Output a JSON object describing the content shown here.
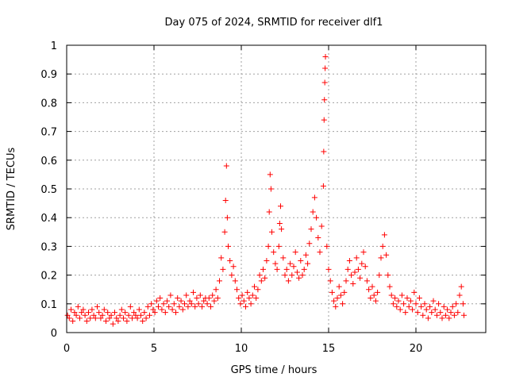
{
  "chart_data": {
    "type": "scatter",
    "title": "Day 075 of 2024, SRMTID for receiver dlf1",
    "xlabel": "GPS time / hours",
    "ylabel": "SRMTID / TECUs",
    "xlim": [
      0,
      24
    ],
    "ylim": [
      0,
      1
    ],
    "x_ticks": [
      0,
      5,
      10,
      15,
      20
    ],
    "y_ticks": [
      0,
      0.1,
      0.2,
      0.3,
      0.4,
      0.5,
      0.6,
      0.7,
      0.8,
      0.9,
      1
    ],
    "x_tick_labels": [
      "0",
      "5",
      "10",
      "15",
      "20"
    ],
    "y_tick_labels": [
      "0",
      "0.1",
      "0.2",
      "0.3",
      "0.4",
      "0.5",
      "0.6",
      "0.7",
      "0.8",
      "0.9",
      "1"
    ],
    "grid": true,
    "marker": "+",
    "color": "#ff0000",
    "series": [
      {
        "name": "SRMTID",
        "points": [
          [
            0.05,
            0.06
          ],
          [
            0.15,
            0.05
          ],
          [
            0.25,
            0.08
          ],
          [
            0.35,
            0.04
          ],
          [
            0.45,
            0.07
          ],
          [
            0.55,
            0.06
          ],
          [
            0.65,
            0.09
          ],
          [
            0.75,
            0.05
          ],
          [
            0.85,
            0.07
          ],
          [
            0.95,
            0.08
          ],
          [
            1.05,
            0.06
          ],
          [
            1.15,
            0.04
          ],
          [
            1.25,
            0.07
          ],
          [
            1.35,
            0.05
          ],
          [
            1.45,
            0.08
          ],
          [
            1.55,
            0.06
          ],
          [
            1.65,
            0.05
          ],
          [
            1.75,
            0.09
          ],
          [
            1.85,
            0.07
          ],
          [
            1.95,
            0.05
          ],
          [
            2.05,
            0.06
          ],
          [
            2.15,
            0.08
          ],
          [
            2.25,
            0.04
          ],
          [
            2.35,
            0.07
          ],
          [
            2.45,
            0.05
          ],
          [
            2.55,
            0.06
          ],
          [
            2.65,
            0.03
          ],
          [
            2.75,
            0.07
          ],
          [
            2.85,
            0.05
          ],
          [
            2.95,
            0.04
          ],
          [
            3.05,
            0.06
          ],
          [
            3.15,
            0.08
          ],
          [
            3.25,
            0.05
          ],
          [
            3.35,
            0.07
          ],
          [
            3.45,
            0.04
          ],
          [
            3.55,
            0.06
          ],
          [
            3.65,
            0.09
          ],
          [
            3.75,
            0.05
          ],
          [
            3.85,
            0.07
          ],
          [
            3.95,
            0.06
          ],
          [
            4.05,
            0.05
          ],
          [
            4.15,
            0.08
          ],
          [
            4.25,
            0.06
          ],
          [
            4.35,
            0.04
          ],
          [
            4.45,
            0.07
          ],
          [
            4.55,
            0.05
          ],
          [
            4.65,
            0.09
          ],
          [
            4.75,
            0.06
          ],
          [
            4.85,
            0.1
          ],
          [
            4.95,
            0.08
          ],
          [
            5.05,
            0.07
          ],
          [
            5.15,
            0.11
          ],
          [
            5.25,
            0.09
          ],
          [
            5.35,
            0.12
          ],
          [
            5.45,
            0.08
          ],
          [
            5.55,
            0.1
          ],
          [
            5.65,
            0.07
          ],
          [
            5.75,
            0.11
          ],
          [
            5.85,
            0.09
          ],
          [
            5.95,
            0.13
          ],
          [
            6.05,
            0.08
          ],
          [
            6.15,
            0.1
          ],
          [
            6.25,
            0.07
          ],
          [
            6.35,
            0.12
          ],
          [
            6.45,
            0.09
          ],
          [
            6.55,
            0.11
          ],
          [
            6.65,
            0.08
          ],
          [
            6.75,
            0.1
          ],
          [
            6.85,
            0.13
          ],
          [
            6.95,
            0.09
          ],
          [
            7.05,
            0.11
          ],
          [
            7.15,
            0.1
          ],
          [
            7.25,
            0.14
          ],
          [
            7.35,
            0.09
          ],
          [
            7.45,
            0.12
          ],
          [
            7.55,
            0.1
          ],
          [
            7.65,
            0.13
          ],
          [
            7.75,
            0.09
          ],
          [
            7.85,
            0.11
          ],
          [
            7.95,
            0.12
          ],
          [
            8.05,
            0.1
          ],
          [
            8.15,
            0.12
          ],
          [
            8.25,
            0.09
          ],
          [
            8.35,
            0.13
          ],
          [
            8.45,
            0.11
          ],
          [
            8.55,
            0.15
          ],
          [
            8.65,
            0.12
          ],
          [
            8.75,
            0.18
          ],
          [
            8.85,
            0.26
          ],
          [
            8.95,
            0.22
          ],
          [
            9.05,
            0.35
          ],
          [
            9.1,
            0.46
          ],
          [
            9.15,
            0.58
          ],
          [
            9.2,
            0.4
          ],
          [
            9.25,
            0.3
          ],
          [
            9.35,
            0.25
          ],
          [
            9.45,
            0.2
          ],
          [
            9.55,
            0.23
          ],
          [
            9.65,
            0.18
          ],
          [
            9.75,
            0.15
          ],
          [
            9.85,
            0.12
          ],
          [
            9.95,
            0.1
          ],
          [
            10.05,
            0.13
          ],
          [
            10.15,
            0.11
          ],
          [
            10.25,
            0.09
          ],
          [
            10.35,
            0.14
          ],
          [
            10.45,
            0.12
          ],
          [
            10.55,
            0.1
          ],
          [
            10.65,
            0.13
          ],
          [
            10.75,
            0.16
          ],
          [
            10.85,
            0.12
          ],
          [
            10.95,
            0.15
          ],
          [
            11.05,
            0.2
          ],
          [
            11.15,
            0.18
          ],
          [
            11.25,
            0.22
          ],
          [
            11.35,
            0.19
          ],
          [
            11.45,
            0.25
          ],
          [
            11.55,
            0.3
          ],
          [
            11.6,
            0.42
          ],
          [
            11.65,
            0.55
          ],
          [
            11.7,
            0.5
          ],
          [
            11.75,
            0.35
          ],
          [
            11.85,
            0.28
          ],
          [
            11.95,
            0.24
          ],
          [
            12.05,
            0.22
          ],
          [
            12.15,
            0.3
          ],
          [
            12.2,
            0.38
          ],
          [
            12.25,
            0.44
          ],
          [
            12.3,
            0.36
          ],
          [
            12.4,
            0.26
          ],
          [
            12.5,
            0.2
          ],
          [
            12.6,
            0.22
          ],
          [
            12.7,
            0.18
          ],
          [
            12.8,
            0.24
          ],
          [
            12.9,
            0.2
          ],
          [
            13.0,
            0.23
          ],
          [
            13.1,
            0.28
          ],
          [
            13.2,
            0.21
          ],
          [
            13.3,
            0.19
          ],
          [
            13.4,
            0.25
          ],
          [
            13.5,
            0.2
          ],
          [
            13.6,
            0.22
          ],
          [
            13.7,
            0.27
          ],
          [
            13.8,
            0.24
          ],
          [
            13.9,
            0.31
          ],
          [
            14.0,
            0.36
          ],
          [
            14.1,
            0.42
          ],
          [
            14.2,
            0.47
          ],
          [
            14.3,
            0.4
          ],
          [
            14.4,
            0.33
          ],
          [
            14.5,
            0.28
          ],
          [
            14.6,
            0.37
          ],
          [
            14.7,
            0.51
          ],
          [
            14.72,
            0.63
          ],
          [
            14.74,
            0.74
          ],
          [
            14.76,
            0.81
          ],
          [
            14.78,
            0.87
          ],
          [
            14.8,
            0.92
          ],
          [
            14.82,
            0.96
          ],
          [
            14.9,
            0.3
          ],
          [
            15.0,
            0.22
          ],
          [
            15.1,
            0.18
          ],
          [
            15.2,
            0.14
          ],
          [
            15.3,
            0.11
          ],
          [
            15.4,
            0.09
          ],
          [
            15.5,
            0.12
          ],
          [
            15.6,
            0.16
          ],
          [
            15.7,
            0.13
          ],
          [
            15.8,
            0.1
          ],
          [
            15.9,
            0.14
          ],
          [
            16.0,
            0.18
          ],
          [
            16.1,
            0.22
          ],
          [
            16.2,
            0.25
          ],
          [
            16.3,
            0.2
          ],
          [
            16.4,
            0.17
          ],
          [
            16.5,
            0.21
          ],
          [
            16.6,
            0.26
          ],
          [
            16.7,
            0.22
          ],
          [
            16.8,
            0.19
          ],
          [
            16.9,
            0.24
          ],
          [
            17.0,
            0.28
          ],
          [
            17.1,
            0.23
          ],
          [
            17.2,
            0.18
          ],
          [
            17.3,
            0.15
          ],
          [
            17.4,
            0.12
          ],
          [
            17.5,
            0.16
          ],
          [
            17.6,
            0.13
          ],
          [
            17.7,
            0.11
          ],
          [
            17.8,
            0.14
          ],
          [
            17.9,
            0.2
          ],
          [
            18.0,
            0.26
          ],
          [
            18.1,
            0.3
          ],
          [
            18.2,
            0.34
          ],
          [
            18.3,
            0.27
          ],
          [
            18.4,
            0.2
          ],
          [
            18.5,
            0.16
          ],
          [
            18.6,
            0.13
          ],
          [
            18.7,
            0.1
          ],
          [
            18.8,
            0.12
          ],
          [
            18.9,
            0.09
          ],
          [
            19.0,
            0.11
          ],
          [
            19.1,
            0.08
          ],
          [
            19.2,
            0.13
          ],
          [
            19.3,
            0.1
          ],
          [
            19.4,
            0.07
          ],
          [
            19.5,
            0.12
          ],
          [
            19.6,
            0.09
          ],
          [
            19.7,
            0.11
          ],
          [
            19.8,
            0.08
          ],
          [
            19.9,
            0.14
          ],
          [
            20.0,
            0.1
          ],
          [
            20.1,
            0.07
          ],
          [
            20.2,
            0.12
          ],
          [
            20.3,
            0.09
          ],
          [
            20.4,
            0.06
          ],
          [
            20.5,
            0.1
          ],
          [
            20.6,
            0.08
          ],
          [
            20.7,
            0.05
          ],
          [
            20.8,
            0.09
          ],
          [
            20.9,
            0.07
          ],
          [
            21.0,
            0.11
          ],
          [
            21.1,
            0.08
          ],
          [
            21.2,
            0.06
          ],
          [
            21.3,
            0.1
          ],
          [
            21.4,
            0.07
          ],
          [
            21.5,
            0.05
          ],
          [
            21.6,
            0.09
          ],
          [
            21.7,
            0.06
          ],
          [
            21.8,
            0.08
          ],
          [
            21.9,
            0.05
          ],
          [
            22.0,
            0.07
          ],
          [
            22.1,
            0.09
          ],
          [
            22.2,
            0.06
          ],
          [
            22.3,
            0.1
          ],
          [
            22.4,
            0.07
          ],
          [
            22.5,
            0.13
          ],
          [
            22.6,
            0.16
          ],
          [
            22.7,
            0.1
          ],
          [
            22.75,
            0.06
          ]
        ]
      }
    ]
  }
}
